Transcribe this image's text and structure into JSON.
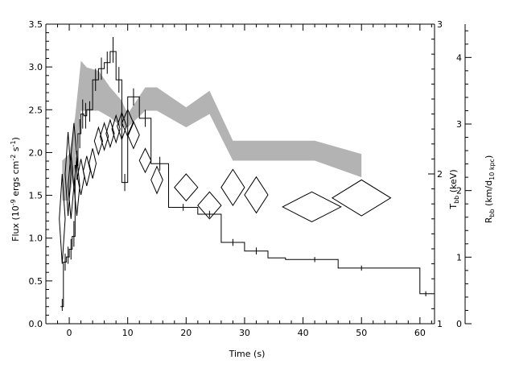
{
  "chart_data": {
    "type": "line",
    "xlabel": "Time (s)",
    "ylabel_left": {
      "main": "Flux (10",
      "sup1": "-9",
      "mid": " ergs cm",
      "sup2": "-2",
      "mid2": " s",
      "sup3": "-1",
      "end": ")"
    },
    "ylabel_right_inner": {
      "main": "T",
      "sub": "bb",
      "end": " (keV)"
    },
    "ylabel_right_outer": {
      "main": "R",
      "sub": "bb",
      "mid": " (km/d",
      "sub2": "10 kpc",
      "end": ")"
    },
    "xlim": [
      -4,
      62.5
    ],
    "ylim_left": [
      0,
      3.5
    ],
    "ylim_right_inner": [
      1,
      3
    ],
    "ylim_right_outer": [
      0,
      4.5
    ],
    "xticks": [
      "0",
      "10",
      "20",
      "30",
      "40",
      "50",
      "60"
    ],
    "yticks_left": [
      "0.0",
      "0.5",
      "1.0",
      "1.5",
      "2.0",
      "2.5",
      "3.0",
      "3.5"
    ],
    "yticks_right_inner": [
      "1",
      "2",
      "3"
    ],
    "yticks_right_outer": [
      "0",
      "1",
      "2",
      "3",
      "4"
    ],
    "colors": {
      "band": "#b3b3b3",
      "line": "#000000"
    },
    "series": [
      {
        "kind": "flux_histogram",
        "bins": [
          [
            -1.5,
            -1.0,
            0.2
          ],
          [
            -1.0,
            -0.5,
            0.72
          ],
          [
            -0.5,
            0.0,
            0.78
          ],
          [
            0.0,
            0.5,
            0.87
          ],
          [
            0.5,
            1.0,
            1.02
          ],
          [
            1.0,
            1.5,
            1.85
          ],
          [
            1.5,
            2.0,
            2.22
          ],
          [
            2.0,
            2.5,
            2.45
          ],
          [
            2.5,
            3.0,
            2.43
          ],
          [
            3.0,
            4.0,
            2.5
          ],
          [
            4.0,
            5.0,
            2.85
          ],
          [
            5.0,
            6.0,
            2.98
          ],
          [
            6.0,
            7.0,
            3.05
          ],
          [
            7.0,
            8.0,
            3.18
          ],
          [
            8.0,
            9.0,
            2.85
          ],
          [
            9.0,
            10.0,
            1.65
          ],
          [
            10.0,
            12.0,
            2.65
          ],
          [
            12.0,
            14.0,
            2.4
          ],
          [
            14.0,
            17.0,
            1.87
          ],
          [
            17.0,
            22.0,
            1.36
          ],
          [
            22.0,
            26.0,
            1.28
          ],
          [
            26.0,
            30.0,
            0.95
          ],
          [
            30.0,
            34.0,
            0.85
          ],
          [
            34.0,
            37.0,
            0.77
          ],
          [
            37.0,
            46.0,
            0.75
          ],
          [
            46.0,
            60.0,
            0.65
          ],
          [
            60.0,
            62.0,
            0.35
          ]
        ],
        "errors": [
          [
            -1.2,
            0.22,
            0.07
          ],
          [
            -0.7,
            0.72,
            0.1
          ],
          [
            -0.2,
            0.8,
            0.1
          ],
          [
            0.3,
            0.87,
            0.12
          ],
          [
            0.8,
            1.05,
            0.15
          ],
          [
            1.3,
            1.85,
            0.17
          ],
          [
            1.8,
            2.22,
            0.17
          ],
          [
            2.3,
            2.45,
            0.17
          ],
          [
            2.8,
            2.43,
            0.15
          ],
          [
            3.5,
            2.48,
            0.12
          ],
          [
            4.5,
            2.85,
            0.13
          ],
          [
            5.5,
            2.98,
            0.13
          ],
          [
            6.5,
            3.05,
            0.13
          ],
          [
            7.5,
            3.2,
            0.15
          ],
          [
            8.5,
            2.85,
            0.15
          ],
          [
            9.5,
            1.65,
            0.1
          ],
          [
            11.0,
            2.65,
            0.1
          ],
          [
            13.0,
            2.4,
            0.1
          ],
          [
            15.5,
            1.87,
            0.08
          ],
          [
            19.5,
            1.36,
            0.04
          ],
          [
            24.0,
            1.28,
            0.04
          ],
          [
            28.0,
            0.95,
            0.04
          ],
          [
            32.0,
            0.85,
            0.04
          ],
          [
            42.0,
            0.75,
            0.03
          ],
          [
            50.0,
            0.65,
            0.03
          ],
          [
            61.0,
            0.35,
            0.03
          ]
        ]
      },
      {
        "kind": "temperature_diamonds",
        "axis": "right_inner",
        "points": [
          [
            -1.2,
            1.7,
            0.5,
            0.3
          ],
          [
            -0.2,
            2.0,
            0.5,
            0.28
          ],
          [
            0.3,
            1.92,
            0.5,
            0.22
          ],
          [
            0.8,
            2.12,
            0.5,
            0.22
          ],
          [
            1.3,
            1.92,
            0.5,
            0.2
          ],
          [
            2.0,
            1.98,
            0.6,
            0.12
          ],
          [
            3.0,
            2.02,
            0.6,
            0.1
          ],
          [
            4.0,
            2.07,
            0.6,
            0.1
          ],
          [
            5.0,
            2.22,
            0.7,
            0.09
          ],
          [
            6.0,
            2.25,
            0.7,
            0.09
          ],
          [
            7.0,
            2.27,
            0.7,
            0.09
          ],
          [
            8.0,
            2.3,
            0.7,
            0.09
          ],
          [
            9.0,
            2.32,
            0.8,
            0.09
          ],
          [
            10.0,
            2.34,
            1.0,
            0.09
          ],
          [
            11.0,
            2.26,
            1.0,
            0.09
          ],
          [
            13.0,
            2.09,
            1.0,
            0.08
          ],
          [
            15.0,
            1.96,
            1.0,
            0.09
          ],
          [
            20.0,
            1.91,
            2.0,
            0.09
          ],
          [
            24.0,
            1.79,
            2.0,
            0.09
          ],
          [
            28.0,
            1.91,
            2.0,
            0.12
          ],
          [
            32.0,
            1.86,
            2.0,
            0.12
          ],
          [
            41.5,
            1.78,
            5.0,
            0.1
          ],
          [
            50.0,
            1.84,
            5.0,
            0.12
          ]
        ]
      },
      {
        "kind": "radius_band",
        "axis": "right_outer",
        "upper": [
          [
            -1.2,
            2.45
          ],
          [
            0.0,
            2.55
          ],
          [
            1.0,
            3.1
          ],
          [
            2.0,
            3.95
          ],
          [
            3.0,
            3.85
          ],
          [
            5.0,
            3.8
          ],
          [
            7.0,
            3.55
          ],
          [
            9.0,
            3.35
          ],
          [
            10.0,
            3.15
          ],
          [
            13.0,
            3.55
          ],
          [
            15.0,
            3.55
          ],
          [
            20.0,
            3.25
          ],
          [
            24.0,
            3.5
          ],
          [
            28.0,
            2.75
          ],
          [
            42.0,
            2.75
          ],
          [
            50.0,
            2.55
          ]
        ],
        "lower": [
          [
            50.0,
            2.2
          ],
          [
            42.0,
            2.45
          ],
          [
            28.0,
            2.45
          ],
          [
            24.0,
            3.15
          ],
          [
            20.0,
            2.95
          ],
          [
            15.0,
            3.2
          ],
          [
            13.0,
            3.2
          ],
          [
            10.0,
            2.95
          ],
          [
            9.0,
            2.95
          ],
          [
            7.0,
            3.1
          ],
          [
            5.0,
            3.2
          ],
          [
            3.0,
            3.2
          ],
          [
            2.0,
            3.2
          ],
          [
            1.0,
            2.4
          ],
          [
            0.0,
            1.85
          ],
          [
            -1.2,
            1.85
          ]
        ]
      }
    ]
  }
}
